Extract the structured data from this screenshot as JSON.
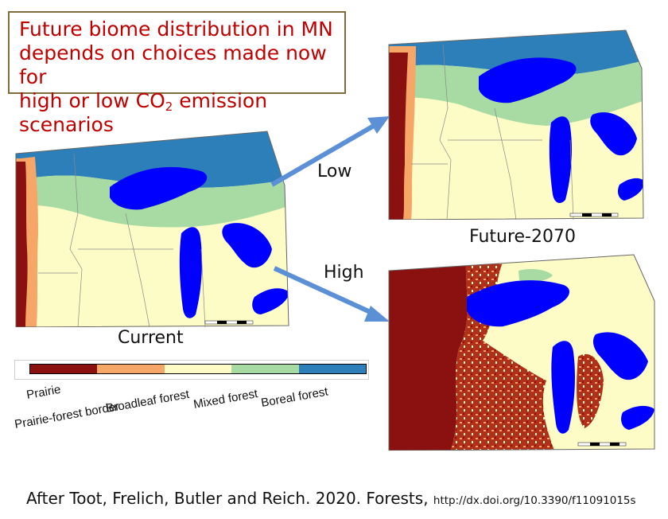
{
  "title": {
    "line1": "Future biome distribution in MN",
    "line2": "depends on choices made now for",
    "line3_pre": "high or low CO",
    "line3_sub": "2",
    "line3_post": " emission scenarios"
  },
  "maps": {
    "current_caption": "Current",
    "future_caption": "Future-2070",
    "low_label": "Low",
    "high_label": "High"
  },
  "legend": {
    "items": [
      {
        "label": "Prairie",
        "color": "#8b1111"
      },
      {
        "label": "Prairie-forest border",
        "color": "#f6a767"
      },
      {
        "label": "Broadleaf forest",
        "color": "#fdfcc6"
      },
      {
        "label": "Mixed forest",
        "color": "#a8dba4"
      },
      {
        "label": "Boreal forest",
        "color": "#2c7fb8"
      }
    ]
  },
  "colors": {
    "water": "#0000ff",
    "arrow": "#5b8fd6",
    "title_text": "#c00000"
  },
  "citation": {
    "text": "After Toot, Frelich, Butler and Reich. 2020. Forests,",
    "url": "http://dx.doi.org/10.3390/f11091015s"
  }
}
